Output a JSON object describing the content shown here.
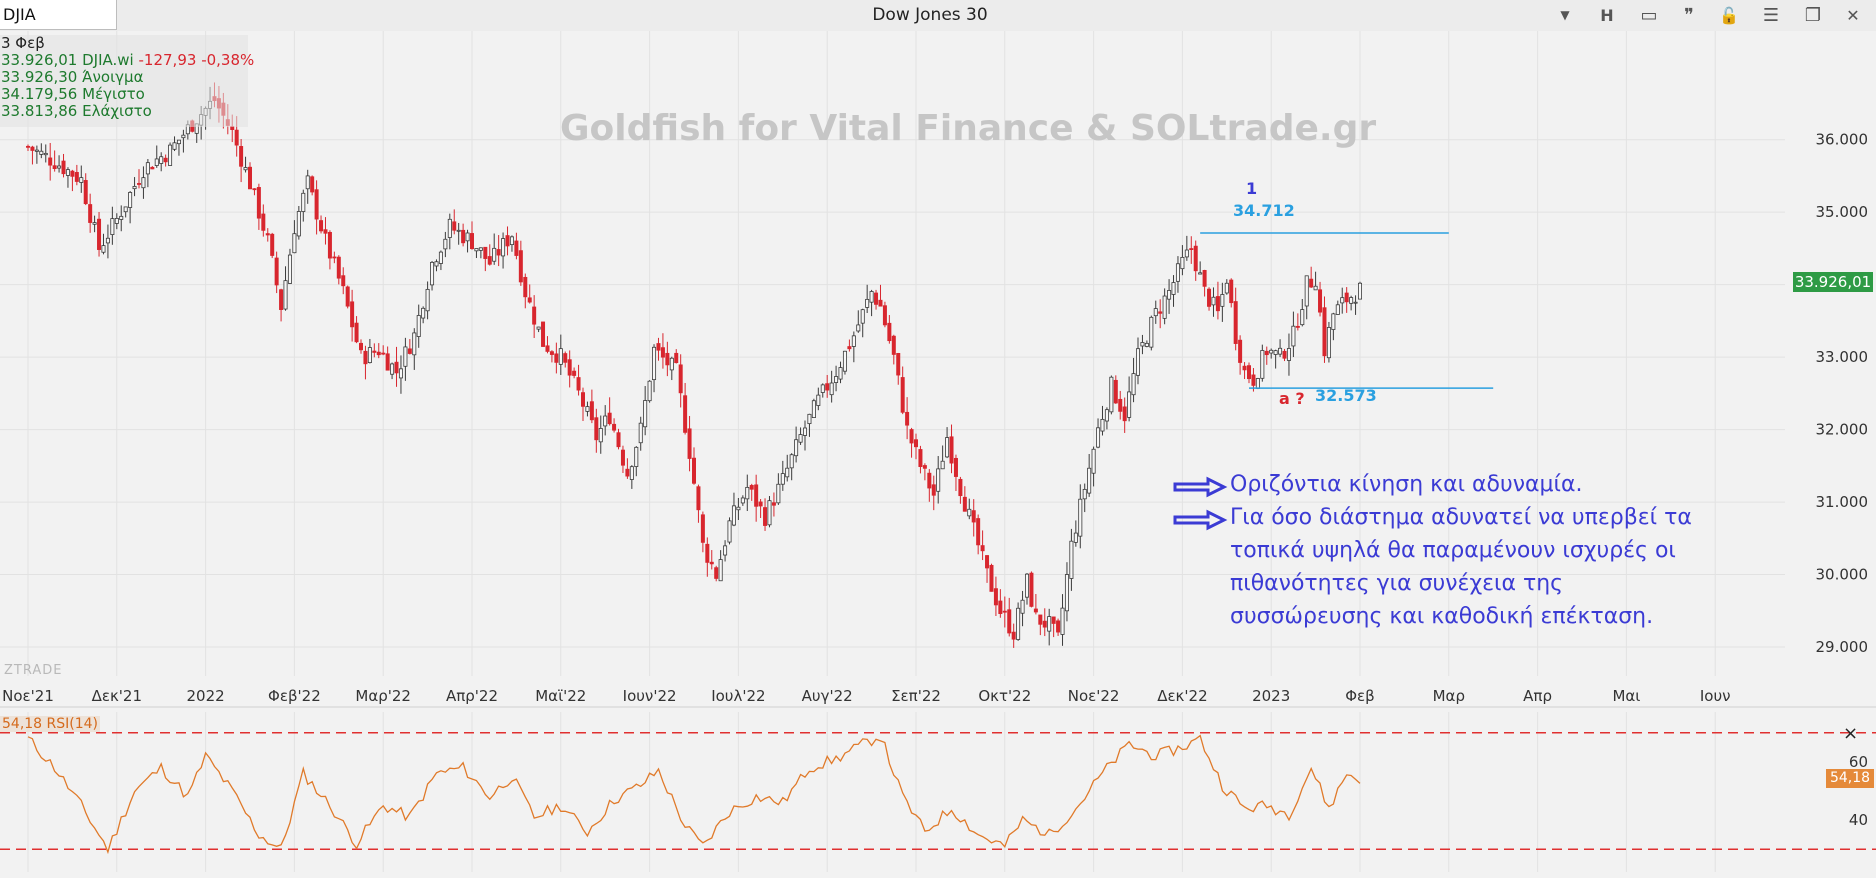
{
  "window": {
    "symbol": "DJIA",
    "title": "Dow Jones 30",
    "buttons": [
      {
        "name": "dropdown-icon",
        "label": "▼"
      },
      {
        "name": "h-button",
        "label": "H"
      },
      {
        "name": "layout-icon",
        "label": "▭"
      },
      {
        "name": "quote-icon",
        "label": "❞"
      },
      {
        "name": "lock-icon",
        "label": "🔓"
      },
      {
        "name": "menu-icon",
        "label": "☰"
      },
      {
        "name": "restore-icon",
        "label": "❐"
      },
      {
        "name": "close-icon",
        "label": "✕"
      }
    ]
  },
  "info_panel": {
    "date": "3 Φεβ",
    "last_value": "33.926,01",
    "last_symbol": "DJIA.wi",
    "change": "-127,93",
    "change_pct": "-0,38%",
    "open_value": "33.926,30",
    "open_label": "Άνοιγμα",
    "high_value": "34.179,56",
    "high_label": "Μέγιστο",
    "low_value": "33.813,86",
    "low_label": "Ελάχιστο"
  },
  "watermark": "Goldfish for Vital Finance & SOLtrade.gr",
  "credit": "ZTRADE",
  "annotations": {
    "wave_label": "1",
    "level_high": "34.712",
    "level_low": "32.573",
    "wave_a_label": "a ?",
    "note_line1": "Οριζόντια κίνηση και αδυναμία.",
    "note_line2": "Για όσο διάστημα αδυνατεί να υπερβεί τα",
    "note_line3": "τοπικά υψηλά θα παραμένουν ισχυρές οι",
    "note_line4": "πιθανότητες για συνέχεια της",
    "note_line5": "συσσώρευσης και καθοδική επέκταση."
  },
  "price_tag": "33.926,01",
  "rsi": {
    "label": "54,18 RSI(14)",
    "tag": "54,18",
    "close": "×",
    "current": 54.18,
    "ticks": [
      "60",
      "40"
    ],
    "upper_band": 70,
    "lower_band": 30
  },
  "colors": {
    "up": "#3a3a3a",
    "down": "#d8262e",
    "rsi_line": "#e07a2a",
    "band": "#e03030",
    "level": "#2aa0e0",
    "note": "#3b3bd4",
    "price_tag": "#2e9b45"
  },
  "chart_data": {
    "type": "candlestick",
    "symbol": "DJIA",
    "y_ticks": [
      "36.000",
      "35.000",
      "34.000",
      "33.000",
      "32.000",
      "31.000",
      "30.000",
      "29.000"
    ],
    "y_tick_values": [
      36000,
      35000,
      34000,
      33000,
      32000,
      31000,
      30000,
      29000
    ],
    "ylim": [
      28600,
      37500
    ],
    "x_ticks": [
      "Νοε'21",
      "Δεκ'21",
      "2022",
      "Φεβ'22",
      "Μαρ'22",
      "Απρ'22",
      "Μαϊ'22",
      "Ιουν'22",
      "Ιουλ'22",
      "Αυγ'22",
      "Σεπ'22",
      "Οκτ'22",
      "Νοε'22",
      "Δεκ'22",
      "2023",
      "Φεβ",
      "Μαρ",
      "Απρ",
      "Μαι",
      "Ιουν"
    ],
    "x_tick_month_index": [
      0,
      1,
      2,
      3,
      4,
      5,
      6,
      7,
      8,
      9,
      10,
      11,
      12,
      13,
      14,
      15,
      16,
      17,
      18,
      19
    ],
    "close_path": [
      {
        "m": 0.0,
        "v": 35900
      },
      {
        "m": 0.3,
        "v": 35700
      },
      {
        "m": 0.6,
        "v": 35450
      },
      {
        "m": 0.8,
        "v": 34500
      },
      {
        "m": 1.0,
        "v": 34900
      },
      {
        "m": 1.3,
        "v": 35600
      },
      {
        "m": 1.6,
        "v": 35850
      },
      {
        "m": 1.9,
        "v": 36300
      },
      {
        "m": 2.1,
        "v": 36550
      },
      {
        "m": 2.3,
        "v": 36100
      },
      {
        "m": 2.5,
        "v": 35400
      },
      {
        "m": 2.7,
        "v": 34600
      },
      {
        "m": 2.85,
        "v": 33700
      },
      {
        "m": 3.0,
        "v": 34800
      },
      {
        "m": 3.15,
        "v": 35400
      },
      {
        "m": 3.35,
        "v": 34600
      },
      {
        "m": 3.55,
        "v": 33900
      },
      {
        "m": 3.75,
        "v": 33000
      },
      {
        "m": 3.95,
        "v": 33100
      },
      {
        "m": 4.15,
        "v": 32800
      },
      {
        "m": 4.35,
        "v": 33300
      },
      {
        "m": 4.55,
        "v": 34300
      },
      {
        "m": 4.75,
        "v": 34800
      },
      {
        "m": 5.0,
        "v": 34600
      },
      {
        "m": 5.2,
        "v": 34300
      },
      {
        "m": 5.45,
        "v": 34700
      },
      {
        "m": 5.6,
        "v": 33900
      },
      {
        "m": 5.8,
        "v": 33200
      },
      {
        "m": 6.0,
        "v": 33000
      },
      {
        "m": 6.2,
        "v": 32500
      },
      {
        "m": 6.4,
        "v": 31900
      },
      {
        "m": 6.55,
        "v": 32200
      },
      {
        "m": 6.75,
        "v": 31400
      },
      {
        "m": 6.9,
        "v": 32000
      },
      {
        "m": 7.05,
        "v": 33100
      },
      {
        "m": 7.3,
        "v": 32800
      },
      {
        "m": 7.45,
        "v": 31700
      },
      {
        "m": 7.6,
        "v": 30400
      },
      {
        "m": 7.75,
        "v": 30000
      },
      {
        "m": 7.9,
        "v": 30700
      },
      {
        "m": 8.1,
        "v": 31200
      },
      {
        "m": 8.3,
        "v": 30800
      },
      {
        "m": 8.5,
        "v": 31300
      },
      {
        "m": 8.7,
        "v": 31900
      },
      {
        "m": 8.9,
        "v": 32400
      },
      {
        "m": 9.1,
        "v": 32800
      },
      {
        "m": 9.3,
        "v": 33300
      },
      {
        "m": 9.5,
        "v": 33900
      },
      {
        "m": 9.6,
        "v": 33700
      },
      {
        "m": 9.75,
        "v": 33000
      },
      {
        "m": 9.9,
        "v": 32000
      },
      {
        "m": 10.05,
        "v": 31500
      },
      {
        "m": 10.2,
        "v": 31100
      },
      {
        "m": 10.35,
        "v": 31900
      },
      {
        "m": 10.5,
        "v": 31200
      },
      {
        "m": 10.65,
        "v": 30600
      },
      {
        "m": 10.8,
        "v": 30000
      },
      {
        "m": 10.95,
        "v": 29500
      },
      {
        "m": 11.1,
        "v": 29200
      },
      {
        "m": 11.25,
        "v": 29900
      },
      {
        "m": 11.35,
        "v": 29400
      },
      {
        "m": 11.5,
        "v": 29300
      },
      {
        "m": 11.6,
        "v": 29100
      },
      {
        "m": 11.75,
        "v": 30400
      },
      {
        "m": 11.9,
        "v": 31200
      },
      {
        "m": 12.05,
        "v": 32000
      },
      {
        "m": 12.2,
        "v": 32600
      },
      {
        "m": 12.35,
        "v": 32200
      },
      {
        "m": 12.5,
        "v": 33000
      },
      {
        "m": 12.7,
        "v": 33600
      },
      {
        "m": 12.85,
        "v": 33900
      },
      {
        "m": 13.0,
        "v": 34300
      },
      {
        "m": 13.1,
        "v": 34500
      },
      {
        "m": 13.25,
        "v": 33900
      },
      {
        "m": 13.4,
        "v": 33600
      },
      {
        "m": 13.5,
        "v": 34100
      },
      {
        "m": 13.6,
        "v": 33300
      },
      {
        "m": 13.7,
        "v": 32800
      },
      {
        "m": 13.8,
        "v": 32700
      },
      {
        "m": 13.95,
        "v": 33100
      },
      {
        "m": 14.1,
        "v": 33000
      },
      {
        "m": 14.25,
        "v": 33300
      },
      {
        "m": 14.4,
        "v": 34000
      },
      {
        "m": 14.5,
        "v": 34100
      },
      {
        "m": 14.6,
        "v": 33100
      },
      {
        "m": 14.7,
        "v": 33600
      },
      {
        "m": 14.85,
        "v": 33800
      },
      {
        "m": 15.0,
        "v": 33926
      }
    ],
    "levels": [
      {
        "label": "34.712",
        "value": 34712,
        "from_month": 13.2,
        "to_month": 16.0
      },
      {
        "label": "32.573",
        "value": 32573,
        "from_month": 13.75,
        "to_month": 16.5
      }
    ],
    "rsi_path": [
      {
        "m": 0.0,
        "v": 68
      },
      {
        "m": 0.3,
        "v": 58
      },
      {
        "m": 0.6,
        "v": 45
      },
      {
        "m": 0.9,
        "v": 30
      },
      {
        "m": 1.2,
        "v": 50
      },
      {
        "m": 1.5,
        "v": 58
      },
      {
        "m": 1.8,
        "v": 48
      },
      {
        "m": 2.0,
        "v": 62
      },
      {
        "m": 2.3,
        "v": 50
      },
      {
        "m": 2.6,
        "v": 35
      },
      {
        "m": 2.85,
        "v": 30
      },
      {
        "m": 3.1,
        "v": 56
      },
      {
        "m": 3.4,
        "v": 45
      },
      {
        "m": 3.7,
        "v": 32
      },
      {
        "m": 4.0,
        "v": 45
      },
      {
        "m": 4.3,
        "v": 41
      },
      {
        "m": 4.6,
        "v": 56
      },
      {
        "m": 4.9,
        "v": 58
      },
      {
        "m": 5.2,
        "v": 48
      },
      {
        "m": 5.45,
        "v": 55
      },
      {
        "m": 5.7,
        "v": 41
      },
      {
        "m": 6.0,
        "v": 45
      },
      {
        "m": 6.3,
        "v": 36
      },
      {
        "m": 6.6,
        "v": 47
      },
      {
        "m": 6.9,
        "v": 52
      },
      {
        "m": 7.1,
        "v": 57
      },
      {
        "m": 7.4,
        "v": 38
      },
      {
        "m": 7.6,
        "v": 31
      },
      {
        "m": 7.9,
        "v": 43
      },
      {
        "m": 8.2,
        "v": 48
      },
      {
        "m": 8.5,
        "v": 46
      },
      {
        "m": 8.8,
        "v": 58
      },
      {
        "m": 9.1,
        "v": 61
      },
      {
        "m": 9.4,
        "v": 66
      },
      {
        "m": 9.6,
        "v": 69
      },
      {
        "m": 9.85,
        "v": 48
      },
      {
        "m": 10.1,
        "v": 36
      },
      {
        "m": 10.4,
        "v": 44
      },
      {
        "m": 10.7,
        "v": 35
      },
      {
        "m": 11.0,
        "v": 31
      },
      {
        "m": 11.2,
        "v": 40
      },
      {
        "m": 11.5,
        "v": 35
      },
      {
        "m": 11.8,
        "v": 44
      },
      {
        "m": 12.1,
        "v": 56
      },
      {
        "m": 12.4,
        "v": 66
      },
      {
        "m": 12.7,
        "v": 62
      },
      {
        "m": 13.0,
        "v": 65
      },
      {
        "m": 13.2,
        "v": 68
      },
      {
        "m": 13.45,
        "v": 52
      },
      {
        "m": 13.7,
        "v": 44
      },
      {
        "m": 13.95,
        "v": 45
      },
      {
        "m": 14.2,
        "v": 42
      },
      {
        "m": 14.45,
        "v": 58
      },
      {
        "m": 14.65,
        "v": 44
      },
      {
        "m": 14.85,
        "v": 56
      },
      {
        "m": 15.0,
        "v": 54.18
      }
    ]
  }
}
